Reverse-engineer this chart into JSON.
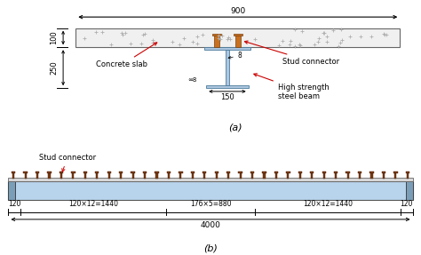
{
  "bg_color": "#ffffff",
  "concrete_fc": "#f0f0f0",
  "concrete_ec": "#666666",
  "steel_fc": "#adc6e0",
  "steel_ec": "#4a7a9b",
  "stud_fc": "#c87020",
  "stud_ec": "#7a4010",
  "beam_body_fc": "#b8d4ec",
  "beam_end_fc": "#7a9eb8",
  "top_strip_fc": "#d8d8d8",
  "arrow_color": "#cc0000",
  "dim_color": "#000000",
  "label_a": "(a)",
  "label_b": "(b)",
  "dim_900": "900",
  "dim_100": "100",
  "dim_250": "250",
  "dim_8": "8",
  "dim_150": "150",
  "text_concrete": "Concrete slab",
  "text_stud": "Stud connector",
  "text_beam": "High strength\nsteel beam",
  "text_stud_b": "Stud connector",
  "dim_120L": "120",
  "dim_120R": "120",
  "dim_seg1": "120×12=1440",
  "dim_seg2": "176×5=880",
  "dim_seg3": "120×12=1440",
  "dim_4000": "4000"
}
